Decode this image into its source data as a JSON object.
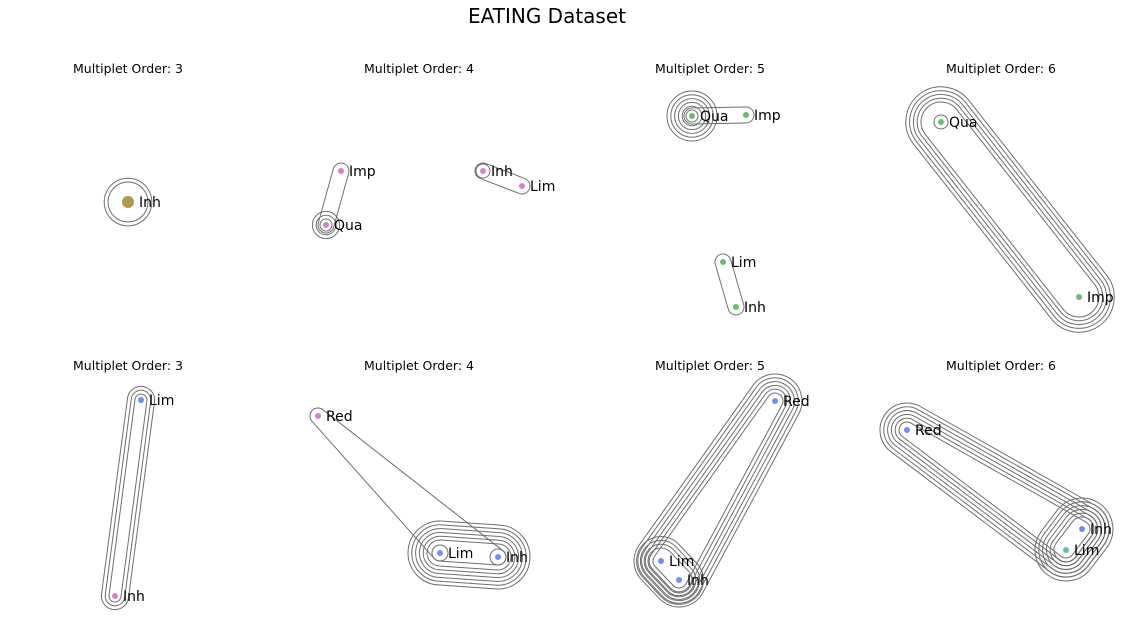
{
  "title": "EATING Dataset",
  "colors": {
    "olive": "#ad9a52",
    "pink": "#d57fd6",
    "green": "#6fba6f",
    "blue": "#6f8fef",
    "teal": "#5fc0a8",
    "hull": "#6e6e6e"
  },
  "panels": [
    {
      "title": "Multiplet Order: 3",
      "nodes": [
        {
          "label": "Inh",
          "color": "olive",
          "big": true
        }
      ],
      "hyperedges": [
        {
          "members": [
            "Inh"
          ],
          "layers": 2
        }
      ]
    },
    {
      "title": "Multiplet Order: 4",
      "nodes": [
        {
          "label": "Imp",
          "color": "pink"
        },
        {
          "label": "Qua",
          "color": "pink"
        },
        {
          "label": "Inh",
          "color": "pink"
        },
        {
          "label": "Lim",
          "color": "pink"
        }
      ],
      "hyperedges": [
        {
          "members": [
            "Imp",
            "Qua"
          ],
          "layers": 1
        },
        {
          "members": [
            "Inh",
            "Lim"
          ],
          "layers": 1
        },
        {
          "members": [
            "Qua"
          ],
          "layers": 3
        },
        {
          "members": [
            "Inh"
          ],
          "layers": 1
        }
      ]
    },
    {
      "title": "Multiplet Order: 5",
      "nodes": [
        {
          "label": "Qua",
          "color": "green"
        },
        {
          "label": "Imp",
          "color": "green"
        },
        {
          "label": "Lim",
          "color": "green"
        },
        {
          "label": "Inh",
          "color": "green"
        }
      ],
      "hyperedges": [
        {
          "members": [
            "Qua",
            "Imp"
          ],
          "layers": 1
        },
        {
          "members": [
            "Lim",
            "Inh"
          ],
          "layers": 1
        },
        {
          "members": [
            "Qua"
          ],
          "layers": 6
        }
      ]
    },
    {
      "title": "Multiplet Order: 6",
      "nodes": [
        {
          "label": "Qua",
          "color": "green"
        },
        {
          "label": "Imp",
          "color": "green"
        }
      ],
      "hyperedges": [
        {
          "members": [
            "Qua",
            "Imp"
          ],
          "layers": 5
        },
        {
          "members": [
            "Qua"
          ],
          "layers": 1
        }
      ]
    },
    {
      "title": "Multiplet Order: 3",
      "nodes": [
        {
          "label": "Lim",
          "color": "blue"
        },
        {
          "label": "Inh",
          "color": "pink"
        }
      ],
      "hyperedges": [
        {
          "members": [
            "Lim",
            "Inh"
          ],
          "layers": 3
        }
      ]
    },
    {
      "title": "Multiplet Order: 4",
      "nodes": [
        {
          "label": "Red",
          "color": "pink"
        },
        {
          "label": "Lim",
          "color": "blue"
        },
        {
          "label": "Inh",
          "color": "blue"
        }
      ],
      "hyperedges": [
        {
          "members": [
            "Red",
            "Lim",
            "Inh"
          ],
          "layers": 1
        },
        {
          "members": [
            "Lim",
            "Inh"
          ],
          "layers": 6
        },
        {
          "members": [
            "Lim"
          ],
          "layers": 1
        },
        {
          "members": [
            "Inh"
          ],
          "layers": 1
        }
      ]
    },
    {
      "title": "Multiplet Order: 5",
      "nodes": [
        {
          "label": "Red",
          "color": "blue"
        },
        {
          "label": "Lim",
          "color": "blue"
        },
        {
          "label": "Inh",
          "color": "blue"
        }
      ],
      "hyperedges": [
        {
          "members": [
            "Red",
            "Lim",
            "Inh"
          ],
          "layers": 6
        },
        {
          "members": [
            "Lim",
            "Inh"
          ],
          "layers": 4
        }
      ]
    },
    {
      "title": "Multiplet Order: 6",
      "nodes": [
        {
          "label": "Red",
          "color": "blue"
        },
        {
          "label": "Inh",
          "color": "blue"
        },
        {
          "label": "Lim",
          "color": "teal"
        }
      ],
      "hyperedges": [
        {
          "members": [
            "Red",
            "Inh",
            "Lim"
          ],
          "layers": 6
        },
        {
          "members": [
            "Inh",
            "Lim"
          ],
          "layers": 6
        }
      ]
    }
  ]
}
